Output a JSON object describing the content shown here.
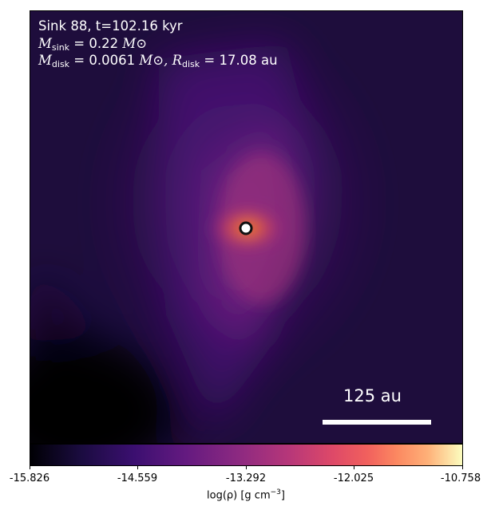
{
  "panel": {
    "line1": "Sink 88, t=102.16 kyr",
    "m_sink_symbol": "M",
    "m_sink_sub": "sink",
    "m_sink_value": "= 0.22",
    "m_sink_unit": "M⊙",
    "m_disk_symbol": "M",
    "m_disk_sub": "disk",
    "m_disk_value": "= 0.0061",
    "m_disk_unit": "M⊙,",
    "r_disk_symbol": "R",
    "r_disk_sub": "disk",
    "r_disk_value": "= 17.08",
    "r_disk_unit": "au"
  },
  "scale_bar": {
    "label": "125 au"
  },
  "colorbar": {
    "ticks": [
      "-15.826",
      "-14.559",
      "-13.292",
      "-12.025",
      "-10.758"
    ],
    "label_main": "log(ρ) [g cm",
    "label_sup": "−3",
    "label_end": "]",
    "colormap": "inferno"
  }
}
